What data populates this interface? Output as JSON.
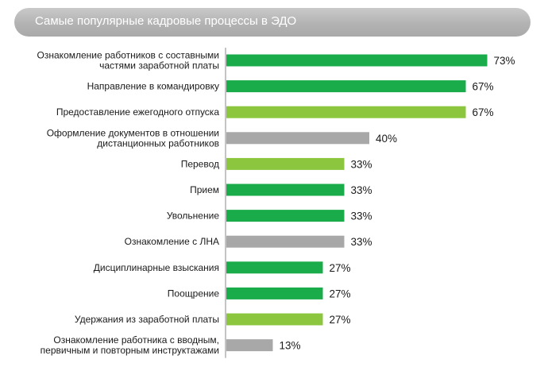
{
  "header": {
    "title": "Самые популярные кадровые процессы в ЭДО"
  },
  "colors": {
    "dark_green": "#1aab4a",
    "light_green": "#8cc63f",
    "gray": "#a8a8a8",
    "axis": "#8a8a8a",
    "label": "#1a1a1a"
  },
  "chart_data": {
    "type": "bar",
    "orientation": "horizontal",
    "title": "Самые популярные кадровые процессы в ЭДО",
    "value_suffix": "%",
    "xlim": [
      0,
      100
    ],
    "grid": false,
    "legend": "none",
    "categories": [
      [
        "Ознакомление работников с составными",
        "частями заработной платы"
      ],
      [
        "Направление в командировку"
      ],
      [
        "Предоставление ежегодного отпуска"
      ],
      [
        "Оформление документов в отношении",
        "дистанционных работников"
      ],
      [
        "Перевод"
      ],
      [
        "Прием"
      ],
      [
        "Увольнение"
      ],
      [
        "Ознакомление с ЛНА"
      ],
      [
        "Дисциплинарные взыскания"
      ],
      [
        "Поощрение"
      ],
      [
        "Удержания из заработной платы"
      ],
      [
        "Ознакомление работника с вводным,",
        "первичным и повторным инструктажами"
      ]
    ],
    "values": [
      73,
      67,
      67,
      40,
      33,
      33,
      33,
      33,
      27,
      27,
      27,
      13
    ],
    "value_labels": [
      "73%",
      "67%",
      "67%",
      "40%",
      "33%",
      "33%",
      "33%",
      "33%",
      "27%",
      "27%",
      "27%",
      "13%"
    ],
    "bar_colors": [
      "dark_green",
      "dark_green",
      "light_green",
      "gray",
      "light_green",
      "dark_green",
      "dark_green",
      "gray",
      "dark_green",
      "dark_green",
      "light_green",
      "gray"
    ]
  }
}
